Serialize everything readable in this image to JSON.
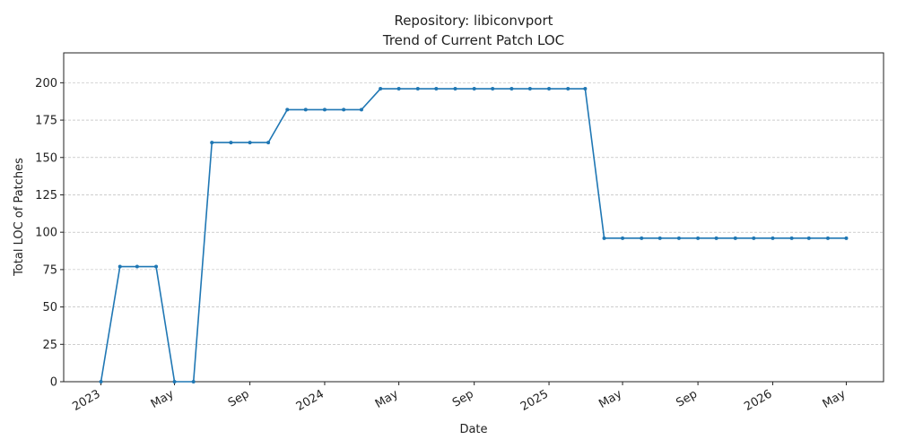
{
  "chart_data": {
    "type": "line",
    "title": "Repository: libiconvport",
    "subtitle": "Trend of Current Patch LOC",
    "xlabel": "Date",
    "ylabel": "Total LOC of Patches",
    "ylim": [
      0,
      220
    ],
    "y_ticks": [
      0,
      25,
      50,
      75,
      100,
      125,
      150,
      175,
      200
    ],
    "x_tick_labels": [
      {
        "date": "2023-01-01",
        "label": "2023"
      },
      {
        "date": "2023-05-01",
        "label": "May"
      },
      {
        "date": "2023-09-01",
        "label": "Sep"
      },
      {
        "date": "2024-01-01",
        "label": "2024"
      },
      {
        "date": "2024-05-01",
        "label": "May"
      },
      {
        "date": "2024-09-01",
        "label": "Sep"
      },
      {
        "date": "2025-01-01",
        "label": "2025"
      },
      {
        "date": "2025-05-01",
        "label": "May"
      },
      {
        "date": "2025-09-01",
        "label": "Sep"
      },
      {
        "date": "2026-01-01",
        "label": "2026"
      },
      {
        "date": "2026-05-01",
        "label": "May"
      }
    ],
    "grid": "y-dashed",
    "color": "#1f77b4",
    "series": [
      {
        "x": [
          "2023-01-01",
          "2023-02-01",
          "2023-03-01",
          "2023-04-01",
          "2023-05-01",
          "2023-06-01",
          "2023-07-01",
          "2023-08-01",
          "2023-09-01",
          "2023-10-01",
          "2023-11-01",
          "2023-12-01",
          "2024-01-01",
          "2024-02-01",
          "2024-03-01",
          "2024-04-01",
          "2024-05-01",
          "2024-06-01",
          "2024-07-01",
          "2024-08-01",
          "2024-09-01",
          "2024-10-01",
          "2024-11-01",
          "2024-12-01",
          "2025-01-01",
          "2025-02-01",
          "2025-03-01",
          "2025-04-01",
          "2025-05-01",
          "2025-06-01",
          "2025-07-01",
          "2025-08-01",
          "2025-09-01",
          "2025-10-01",
          "2025-11-01",
          "2025-12-01",
          "2026-01-01",
          "2026-02-01",
          "2026-03-01",
          "2026-04-01",
          "2026-05-01"
        ],
        "values": [
          0,
          77,
          77,
          77,
          0,
          0,
          160,
          160,
          160,
          160,
          182,
          182,
          182,
          182,
          182,
          196,
          196,
          196,
          196,
          196,
          196,
          196,
          196,
          196,
          196,
          196,
          196,
          96,
          96,
          96,
          96,
          96,
          96,
          96,
          96,
          96,
          96,
          96,
          96,
          96,
          96
        ]
      }
    ]
  }
}
